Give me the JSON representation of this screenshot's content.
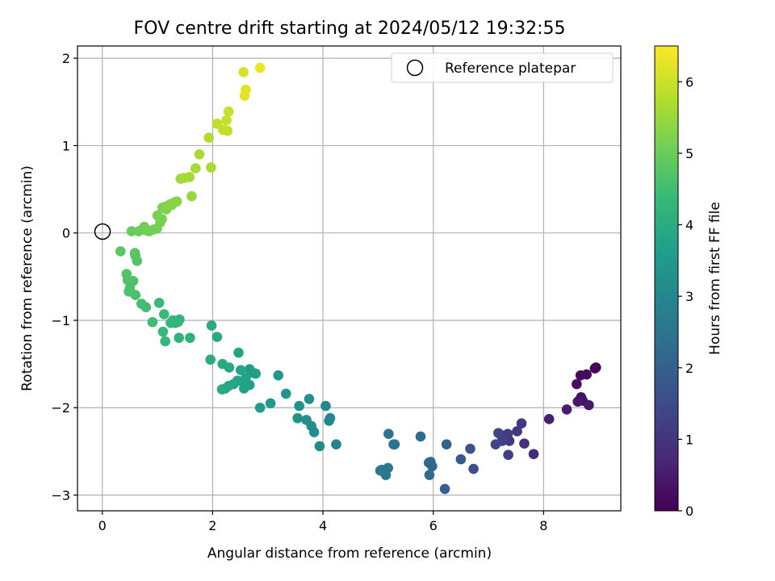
{
  "chart_data": {
    "type": "scatter",
    "title": "FOV centre drift starting at 2024/05/12 19:32:55",
    "xlabel": "Angular distance from reference (arcmin)",
    "ylabel": "Rotation from reference (arcmin)",
    "xlim": [
      -0.45,
      9.4
    ],
    "ylim": [
      -3.18,
      2.14
    ],
    "xticks": [
      0,
      2,
      4,
      6,
      8
    ],
    "xtick_labels": [
      "0",
      "2",
      "4",
      "6",
      "8"
    ],
    "yticks": [
      -3,
      -2,
      -1,
      0,
      1,
      2
    ],
    "ytick_labels": [
      "−3",
      "−2",
      "−1",
      "0",
      "1",
      "2"
    ],
    "grid": true,
    "legend": {
      "position": "top-right",
      "entries": [
        "Reference platepar"
      ]
    },
    "reference_point": {
      "x": 0,
      "y": 0,
      "label": "Reference platepar"
    },
    "colorbar": {
      "label": "Hours from first FF file",
      "range": [
        0,
        6.5
      ],
      "ticks": [
        0,
        1,
        2,
        3,
        4,
        5,
        6
      ],
      "tick_labels": [
        "0",
        "1",
        "2",
        "3",
        "4",
        "5",
        "6"
      ],
      "colormap": "viridis"
    },
    "points": [
      {
        "x": 8.95,
        "y": -1.54,
        "c": 0.05
      },
      {
        "x": 8.93,
        "y": -1.55,
        "c": 0.1
      },
      {
        "x": 8.78,
        "y": -1.62,
        "c": 0.15
      },
      {
        "x": 8.67,
        "y": -1.63,
        "c": 0.2
      },
      {
        "x": 8.6,
        "y": -1.73,
        "c": 0.25
      },
      {
        "x": 8.68,
        "y": -1.88,
        "c": 0.3
      },
      {
        "x": 8.71,
        "y": -1.92,
        "c": 0.35
      },
      {
        "x": 8.62,
        "y": -1.93,
        "c": 0.4
      },
      {
        "x": 8.82,
        "y": -1.97,
        "c": 0.45
      },
      {
        "x": 8.42,
        "y": -2.02,
        "c": 0.5
      },
      {
        "x": 8.1,
        "y": -2.13,
        "c": 0.6
      },
      {
        "x": 7.82,
        "y": -2.53,
        "c": 0.8
      },
      {
        "x": 7.65,
        "y": -2.41,
        "c": 0.9
      },
      {
        "x": 7.6,
        "y": -2.18,
        "c": 1.0
      },
      {
        "x": 7.52,
        "y": -2.27,
        "c": 1.05
      },
      {
        "x": 7.38,
        "y": -2.38,
        "c": 1.1
      },
      {
        "x": 7.35,
        "y": -2.3,
        "c": 1.15
      },
      {
        "x": 7.36,
        "y": -2.54,
        "c": 1.2
      },
      {
        "x": 7.22,
        "y": -2.31,
        "c": 1.25
      },
      {
        "x": 7.25,
        "y": -2.38,
        "c": 1.3
      },
      {
        "x": 7.18,
        "y": -2.29,
        "c": 1.35
      },
      {
        "x": 7.13,
        "y": -2.42,
        "c": 1.4
      },
      {
        "x": 6.73,
        "y": -2.7,
        "c": 1.6
      },
      {
        "x": 6.67,
        "y": -2.47,
        "c": 1.7
      },
      {
        "x": 6.5,
        "y": -2.59,
        "c": 1.8
      },
      {
        "x": 6.24,
        "y": -2.42,
        "c": 1.95
      },
      {
        "x": 6.21,
        "y": -2.93,
        "c": 2.0
      },
      {
        "x": 5.98,
        "y": -2.67,
        "c": 2.1
      },
      {
        "x": 5.92,
        "y": -2.63,
        "c": 2.15
      },
      {
        "x": 5.95,
        "y": -2.62,
        "c": 2.2
      },
      {
        "x": 5.93,
        "y": -2.77,
        "c": 2.25
      },
      {
        "x": 5.77,
        "y": -2.33,
        "c": 2.3
      },
      {
        "x": 5.3,
        "y": -2.42,
        "c": 2.45
      },
      {
        "x": 5.28,
        "y": -2.42,
        "c": 2.5
      },
      {
        "x": 5.19,
        "y": -2.3,
        "c": 2.55
      },
      {
        "x": 5.18,
        "y": -2.69,
        "c": 2.6
      },
      {
        "x": 5.14,
        "y": -2.77,
        "c": 2.62
      },
      {
        "x": 5.07,
        "y": -2.71,
        "c": 2.65
      },
      {
        "x": 5.04,
        "y": -2.72,
        "c": 2.68
      },
      {
        "x": 4.24,
        "y": -2.42,
        "c": 2.9
      },
      {
        "x": 4.13,
        "y": -2.12,
        "c": 3.0
      },
      {
        "x": 4.11,
        "y": -2.15,
        "c": 3.05
      },
      {
        "x": 4.05,
        "y": -1.98,
        "c": 3.08
      },
      {
        "x": 3.94,
        "y": -2.44,
        "c": 3.12
      },
      {
        "x": 3.84,
        "y": -2.28,
        "c": 3.15
      },
      {
        "x": 3.79,
        "y": -2.21,
        "c": 3.18
      },
      {
        "x": 3.75,
        "y": -1.9,
        "c": 3.22
      },
      {
        "x": 3.7,
        "y": -2.14,
        "c": 3.25
      },
      {
        "x": 3.57,
        "y": -1.98,
        "c": 3.28
      },
      {
        "x": 3.54,
        "y": -2.12,
        "c": 3.3
      },
      {
        "x": 3.33,
        "y": -1.84,
        "c": 3.4
      },
      {
        "x": 3.19,
        "y": -1.63,
        "c": 3.45
      },
      {
        "x": 3.05,
        "y": -1.95,
        "c": 3.5
      },
      {
        "x": 2.86,
        "y": -2.0,
        "c": 3.55
      },
      {
        "x": 2.78,
        "y": -1.61,
        "c": 3.6
      },
      {
        "x": 2.73,
        "y": -1.6,
        "c": 3.62
      },
      {
        "x": 2.67,
        "y": -1.56,
        "c": 3.65
      },
      {
        "x": 2.67,
        "y": -1.74,
        "c": 3.68
      },
      {
        "x": 2.6,
        "y": -1.66,
        "c": 3.7
      },
      {
        "x": 2.57,
        "y": -1.78,
        "c": 3.72
      },
      {
        "x": 2.55,
        "y": -1.71,
        "c": 3.74
      },
      {
        "x": 2.51,
        "y": -1.57,
        "c": 3.76
      },
      {
        "x": 2.47,
        "y": -1.37,
        "c": 3.78
      },
      {
        "x": 2.45,
        "y": -1.69,
        "c": 3.8
      },
      {
        "x": 2.38,
        "y": -1.73,
        "c": 3.82
      },
      {
        "x": 2.29,
        "y": -1.75,
        "c": 3.84
      },
      {
        "x": 2.3,
        "y": -1.54,
        "c": 3.86
      },
      {
        "x": 2.23,
        "y": -1.78,
        "c": 3.88
      },
      {
        "x": 2.17,
        "y": -1.79,
        "c": 3.9
      },
      {
        "x": 2.18,
        "y": -1.5,
        "c": 3.92
      },
      {
        "x": 2.08,
        "y": -1.19,
        "c": 3.95
      },
      {
        "x": 1.98,
        "y": -1.06,
        "c": 3.97
      },
      {
        "x": 1.96,
        "y": -1.45,
        "c": 4.0
      },
      {
        "x": 1.59,
        "y": -1.2,
        "c": 4.15
      },
      {
        "x": 1.39,
        "y": -1.2,
        "c": 4.2
      },
      {
        "x": 1.4,
        "y": -0.99,
        "c": 4.22
      },
      {
        "x": 1.37,
        "y": -1.02,
        "c": 4.24
      },
      {
        "x": 1.32,
        "y": -1.03,
        "c": 4.26
      },
      {
        "x": 1.28,
        "y": -1.0,
        "c": 4.28
      },
      {
        "x": 1.24,
        "y": -1.03,
        "c": 4.3
      },
      {
        "x": 1.14,
        "y": -1.24,
        "c": 4.34
      },
      {
        "x": 1.1,
        "y": -1.13,
        "c": 4.36
      },
      {
        "x": 1.12,
        "y": -0.93,
        "c": 4.38
      },
      {
        "x": 1.03,
        "y": -0.8,
        "c": 4.4
      },
      {
        "x": 0.91,
        "y": -1.02,
        "c": 4.45
      },
      {
        "x": 0.79,
        "y": -0.85,
        "c": 4.5
      },
      {
        "x": 0.71,
        "y": -0.81,
        "c": 4.52
      },
      {
        "x": 0.6,
        "y": -0.71,
        "c": 4.6
      },
      {
        "x": 0.56,
        "y": -0.55,
        "c": 4.62
      },
      {
        "x": 0.5,
        "y": -0.63,
        "c": 4.64
      },
      {
        "x": 0.48,
        "y": -0.67,
        "c": 4.66
      },
      {
        "x": 0.46,
        "y": -0.54,
        "c": 4.68
      },
      {
        "x": 0.44,
        "y": -0.47,
        "c": 4.7
      },
      {
        "x": 0.63,
        "y": -0.32,
        "c": 4.75
      },
      {
        "x": 0.6,
        "y": -0.26,
        "c": 4.77
      },
      {
        "x": 0.59,
        "y": -0.23,
        "c": 4.79
      },
      {
        "x": 0.33,
        "y": -0.21,
        "c": 4.82
      },
      {
        "x": 0.53,
        "y": 0.02,
        "c": 4.95
      },
      {
        "x": 0.66,
        "y": 0.02,
        "c": 5.0
      },
      {
        "x": 0.73,
        "y": 0.04,
        "c": 5.02
      },
      {
        "x": 0.76,
        "y": 0.07,
        "c": 5.04
      },
      {
        "x": 0.8,
        "y": 0.03,
        "c": 5.06
      },
      {
        "x": 0.85,
        "y": 0.02,
        "c": 5.08
      },
      {
        "x": 0.93,
        "y": 0.04,
        "c": 5.1
      },
      {
        "x": 0.99,
        "y": 0.05,
        "c": 5.12
      },
      {
        "x": 1.05,
        "y": 0.12,
        "c": 5.14
      },
      {
        "x": 1.08,
        "y": 0.16,
        "c": 5.16
      },
      {
        "x": 1.0,
        "y": 0.2,
        "c": 5.18
      },
      {
        "x": 1.09,
        "y": 0.29,
        "c": 5.2
      },
      {
        "x": 1.14,
        "y": 0.3,
        "c": 5.22
      },
      {
        "x": 1.16,
        "y": 0.27,
        "c": 5.24
      },
      {
        "x": 1.26,
        "y": 0.32,
        "c": 5.26
      },
      {
        "x": 1.35,
        "y": 0.36,
        "c": 5.28
      },
      {
        "x": 1.31,
        "y": 0.35,
        "c": 5.3
      },
      {
        "x": 1.23,
        "y": 0.33,
        "c": 5.32
      },
      {
        "x": 1.62,
        "y": 0.42,
        "c": 5.45
      },
      {
        "x": 1.42,
        "y": 0.62,
        "c": 5.55
      },
      {
        "x": 1.48,
        "y": 0.63,
        "c": 5.58
      },
      {
        "x": 1.58,
        "y": 0.64,
        "c": 5.6
      },
      {
        "x": 1.69,
        "y": 0.74,
        "c": 5.62
      },
      {
        "x": 1.76,
        "y": 0.9,
        "c": 5.66
      },
      {
        "x": 1.97,
        "y": 0.75,
        "c": 5.7
      },
      {
        "x": 1.93,
        "y": 1.09,
        "c": 5.75
      },
      {
        "x": 2.08,
        "y": 1.25,
        "c": 5.85
      },
      {
        "x": 2.19,
        "y": 1.18,
        "c": 5.88
      },
      {
        "x": 2.27,
        "y": 1.17,
        "c": 5.9
      },
      {
        "x": 2.25,
        "y": 1.29,
        "c": 5.92
      },
      {
        "x": 2.29,
        "y": 1.39,
        "c": 5.95
      },
      {
        "x": 2.56,
        "y": 1.84,
        "c": 6.1
      },
      {
        "x": 2.6,
        "y": 1.64,
        "c": 6.2
      },
      {
        "x": 2.58,
        "y": 1.57,
        "c": 6.25
      },
      {
        "x": 2.86,
        "y": 1.89,
        "c": 6.35
      }
    ]
  }
}
